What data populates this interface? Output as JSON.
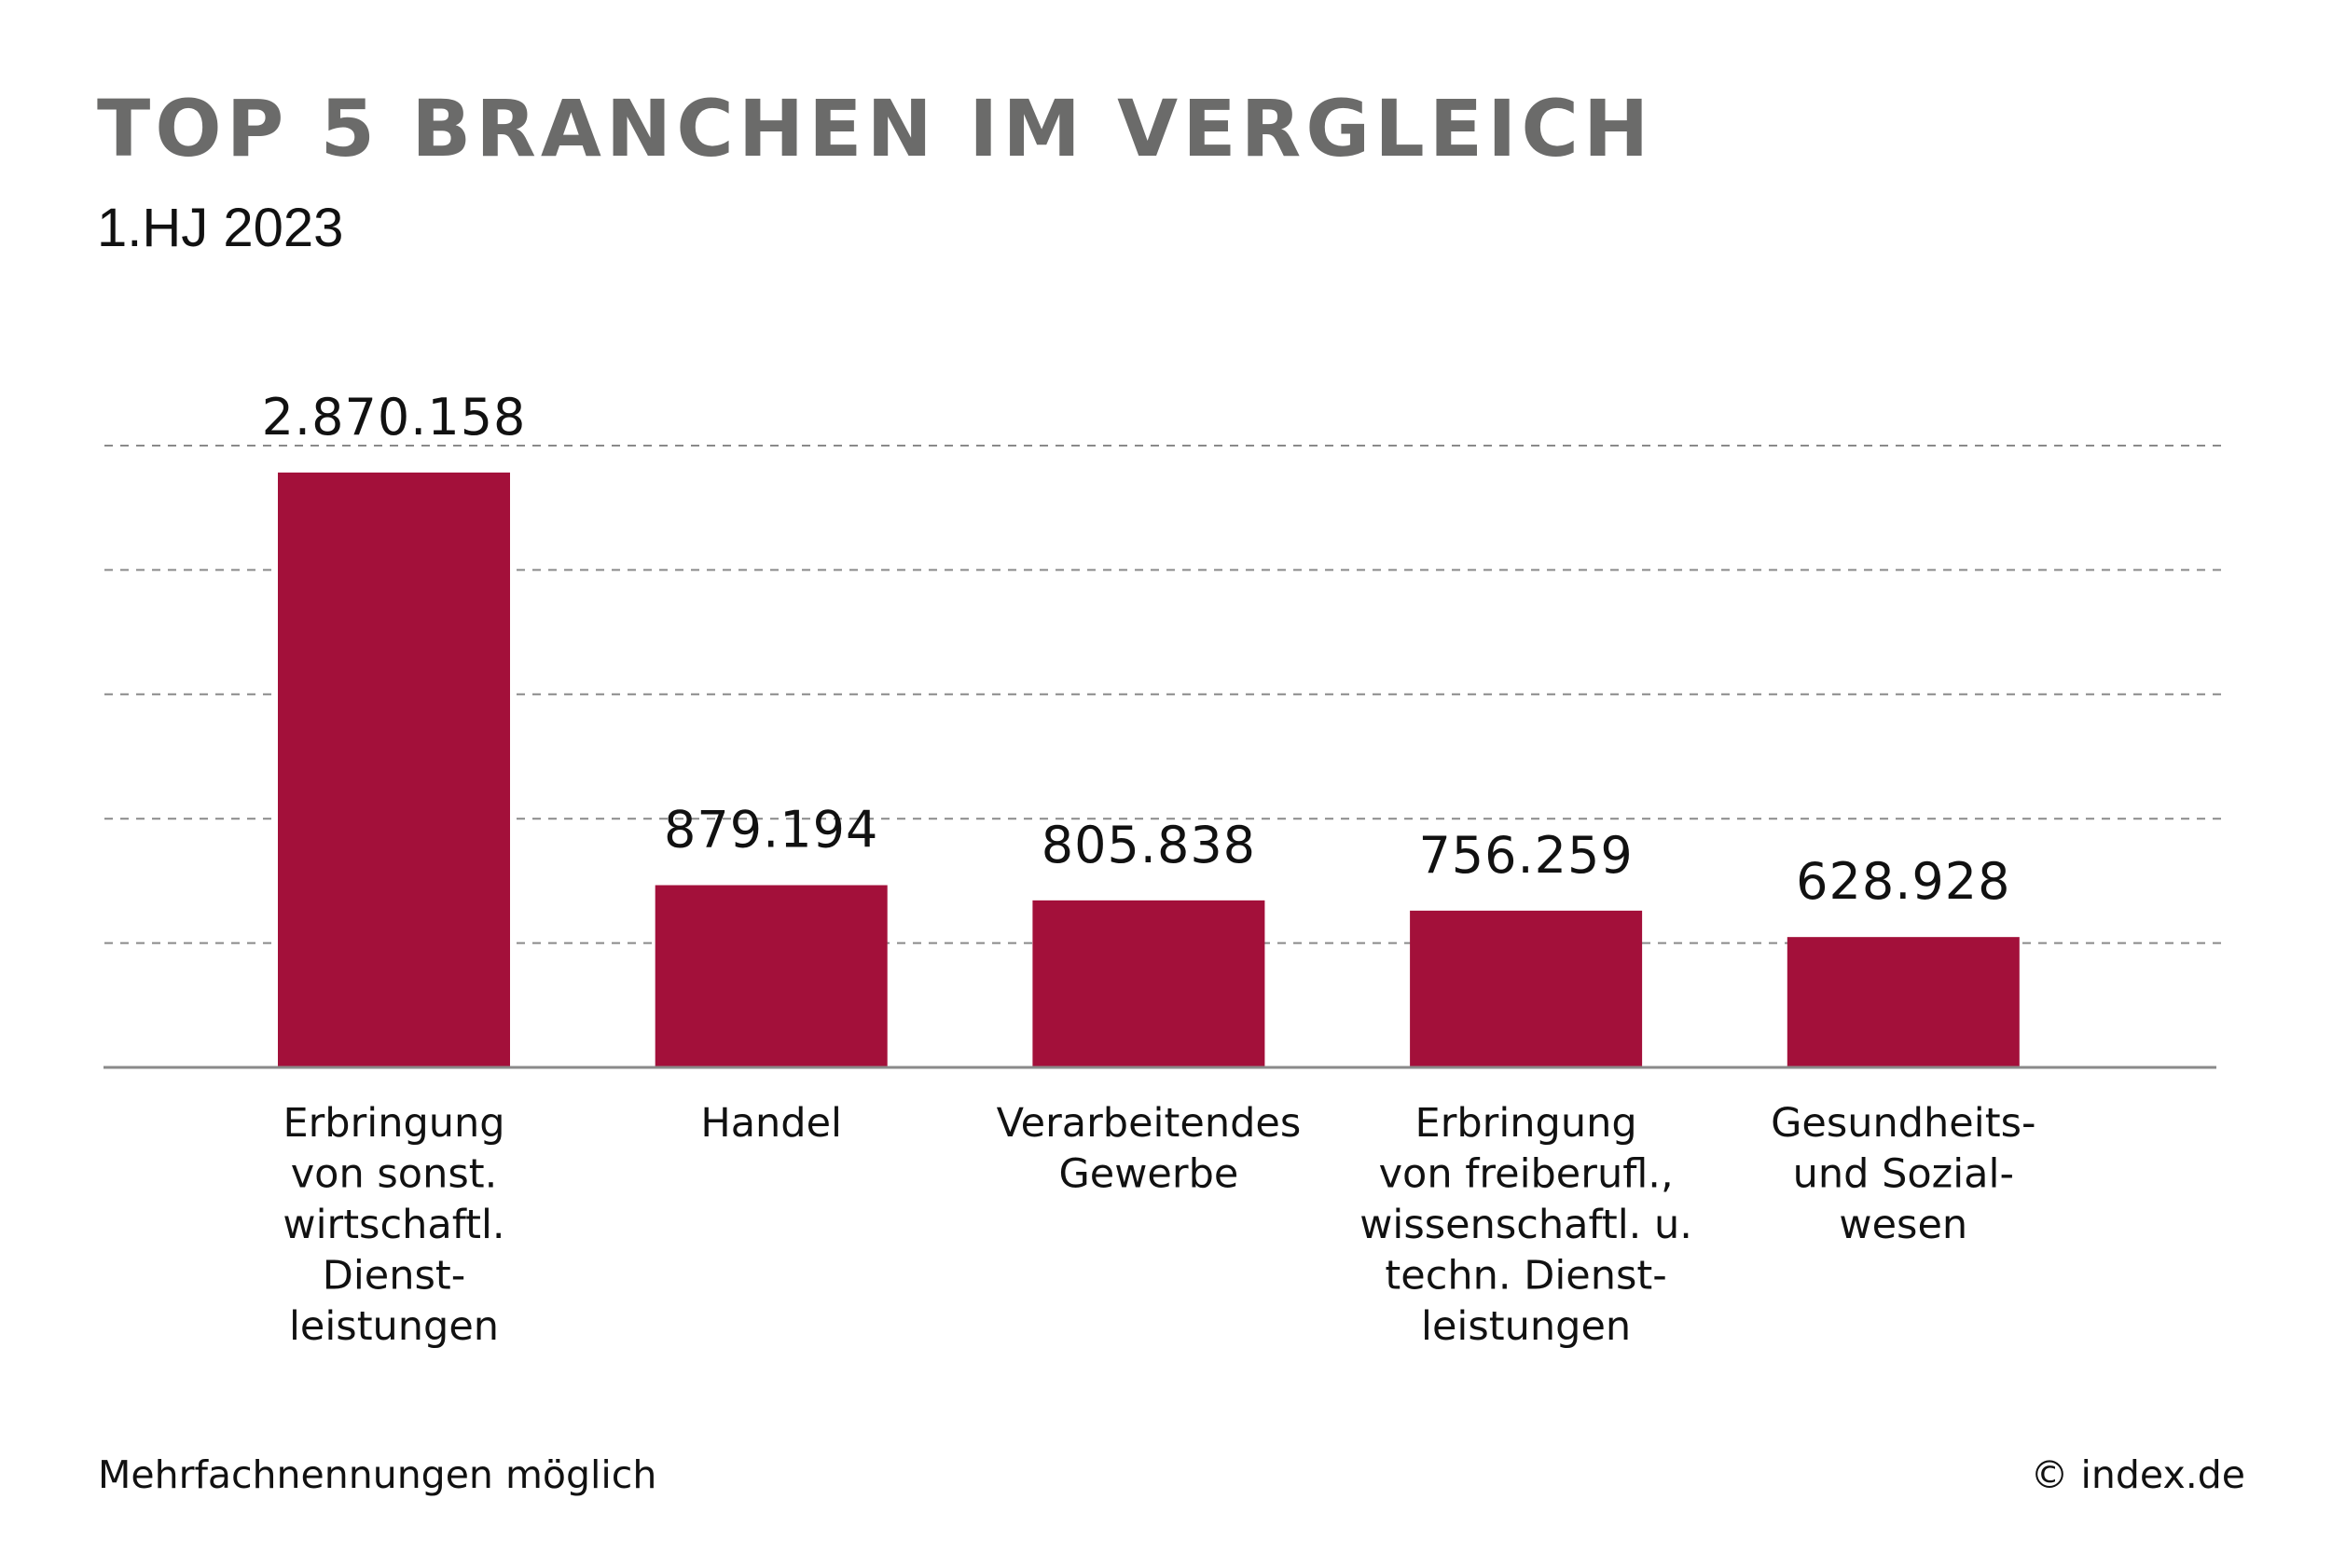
{
  "chart_data": {
    "type": "bar",
    "title": "TOP 5 BRANCHEN IM VERGLEICH",
    "subtitle": "1.HJ 2023",
    "categories": [
      "Erbringung von sonst. wirtschaftl. Dienst-leistungen",
      "Handel",
      "Verarbeitendes Gewerbe",
      "Erbringung von freiberufl., wissenschaftl. u. techn. Dienst-leistungen",
      "Gesundheits- und Sozial-wesen"
    ],
    "category_lines": [
      [
        "Erbringung",
        "von sonst.",
        "wirtschaftl.",
        "Dienst-",
        "leistungen"
      ],
      [
        "Handel"
      ],
      [
        "Verarbeitendes",
        "Gewerbe"
      ],
      [
        "Erbringung",
        "von freiberufl.,",
        "wissenschaftl. u.",
        "techn. Dienst-",
        "leistungen"
      ],
      [
        "Gesundheits-",
        "und Sozial-",
        "wesen"
      ]
    ],
    "values": [
      2870158,
      879194,
      805838,
      756259,
      628928
    ],
    "data_labels": [
      "2.870.158",
      "879.194",
      "805.838",
      "756.259",
      "628.928"
    ],
    "xlabel": "",
    "ylabel": "",
    "ylim": [
      0,
      3000000
    ],
    "gridlines": [
      600000,
      1200000,
      1800000,
      2400000,
      3000000
    ],
    "grid": true,
    "y_tick_labels_shown": false,
    "bar_color": "#a3103a",
    "title_color": "#6b6b6a"
  },
  "footer": {
    "note": "Mehrfachnennungen möglich",
    "copyright": "© index.de"
  }
}
